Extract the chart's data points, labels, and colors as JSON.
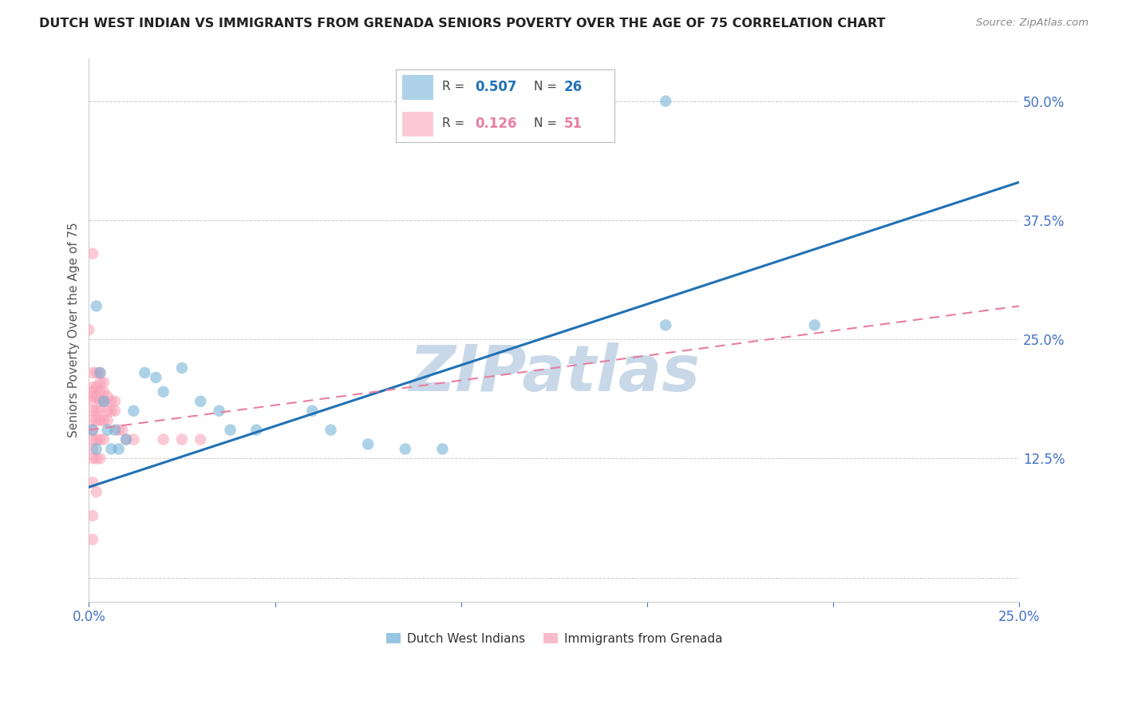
{
  "title": "DUTCH WEST INDIAN VS IMMIGRANTS FROM GRENADA SENIORS POVERTY OVER THE AGE OF 75 CORRELATION CHART",
  "source": "Source: ZipAtlas.com",
  "ylabel": "Seniors Poverty Over the Age of 75",
  "xlim": [
    0.0,
    0.25
  ],
  "ylim": [
    -0.025,
    0.545
  ],
  "yticks": [
    0.0,
    0.125,
    0.25,
    0.375,
    0.5
  ],
  "ytick_labels": [
    "",
    "12.5%",
    "25.0%",
    "37.5%",
    "50.0%"
  ],
  "xticks": [
    0.0,
    0.05,
    0.1,
    0.15,
    0.2,
    0.25
  ],
  "xtick_labels": [
    "0.0%",
    "",
    "",
    "",
    "",
    "25.0%"
  ],
  "blue_R": 0.507,
  "blue_N": 26,
  "pink_R": 0.126,
  "pink_N": 51,
  "blue_color": "#6baed6",
  "pink_color": "#fa9fb5",
  "blue_line_color": "#2171b5",
  "pink_line_color": "#e87ea1",
  "blue_line": [
    0.0,
    0.095,
    0.25,
    0.415
  ],
  "pink_line": [
    0.0,
    0.155,
    0.25,
    0.285
  ],
  "blue_dots": [
    [
      0.001,
      0.155
    ],
    [
      0.002,
      0.135
    ],
    [
      0.002,
      0.285
    ],
    [
      0.003,
      0.215
    ],
    [
      0.004,
      0.185
    ],
    [
      0.005,
      0.155
    ],
    [
      0.006,
      0.135
    ],
    [
      0.007,
      0.155
    ],
    [
      0.008,
      0.135
    ],
    [
      0.01,
      0.145
    ],
    [
      0.012,
      0.175
    ],
    [
      0.015,
      0.215
    ],
    [
      0.018,
      0.21
    ],
    [
      0.02,
      0.195
    ],
    [
      0.025,
      0.22
    ],
    [
      0.03,
      0.185
    ],
    [
      0.035,
      0.175
    ],
    [
      0.038,
      0.155
    ],
    [
      0.045,
      0.155
    ],
    [
      0.06,
      0.175
    ],
    [
      0.065,
      0.155
    ],
    [
      0.075,
      0.14
    ],
    [
      0.085,
      0.135
    ],
    [
      0.095,
      0.135
    ],
    [
      0.155,
      0.265
    ],
    [
      0.195,
      0.265
    ]
  ],
  "pink_dots": [
    [
      0.0,
      0.26
    ],
    [
      0.001,
      0.34
    ],
    [
      0.001,
      0.215
    ],
    [
      0.001,
      0.2
    ],
    [
      0.001,
      0.195
    ],
    [
      0.001,
      0.19
    ],
    [
      0.001,
      0.185
    ],
    [
      0.001,
      0.175
    ],
    [
      0.001,
      0.165
    ],
    [
      0.001,
      0.155
    ],
    [
      0.001,
      0.145
    ],
    [
      0.001,
      0.135
    ],
    [
      0.001,
      0.125
    ],
    [
      0.001,
      0.1
    ],
    [
      0.001,
      0.065
    ],
    [
      0.001,
      0.04
    ],
    [
      0.002,
      0.215
    ],
    [
      0.002,
      0.2
    ],
    [
      0.002,
      0.19
    ],
    [
      0.002,
      0.175
    ],
    [
      0.002,
      0.165
    ],
    [
      0.002,
      0.145
    ],
    [
      0.002,
      0.125
    ],
    [
      0.002,
      0.09
    ],
    [
      0.003,
      0.215
    ],
    [
      0.003,
      0.205
    ],
    [
      0.003,
      0.195
    ],
    [
      0.003,
      0.185
    ],
    [
      0.003,
      0.175
    ],
    [
      0.003,
      0.165
    ],
    [
      0.003,
      0.145
    ],
    [
      0.003,
      0.125
    ],
    [
      0.004,
      0.205
    ],
    [
      0.004,
      0.195
    ],
    [
      0.004,
      0.185
    ],
    [
      0.004,
      0.165
    ],
    [
      0.004,
      0.145
    ],
    [
      0.005,
      0.19
    ],
    [
      0.005,
      0.175
    ],
    [
      0.005,
      0.165
    ],
    [
      0.006,
      0.185
    ],
    [
      0.006,
      0.175
    ],
    [
      0.007,
      0.185
    ],
    [
      0.007,
      0.175
    ],
    [
      0.008,
      0.155
    ],
    [
      0.009,
      0.155
    ],
    [
      0.01,
      0.145
    ],
    [
      0.012,
      0.145
    ],
    [
      0.02,
      0.145
    ],
    [
      0.025,
      0.145
    ],
    [
      0.03,
      0.145
    ]
  ],
  "blue_outlier": [
    0.155,
    0.5
  ],
  "watermark": "ZIPatlas",
  "watermark_color": "#c8d8e8",
  "background_color": "#ffffff",
  "grid_color": "#cccccc",
  "title_color": "#222222",
  "axis_label_color": "#555555",
  "tick_color": "#4472c4",
  "legend_blue_label": "Dutch West Indians",
  "legend_pink_label": "Immigrants from Grenada"
}
